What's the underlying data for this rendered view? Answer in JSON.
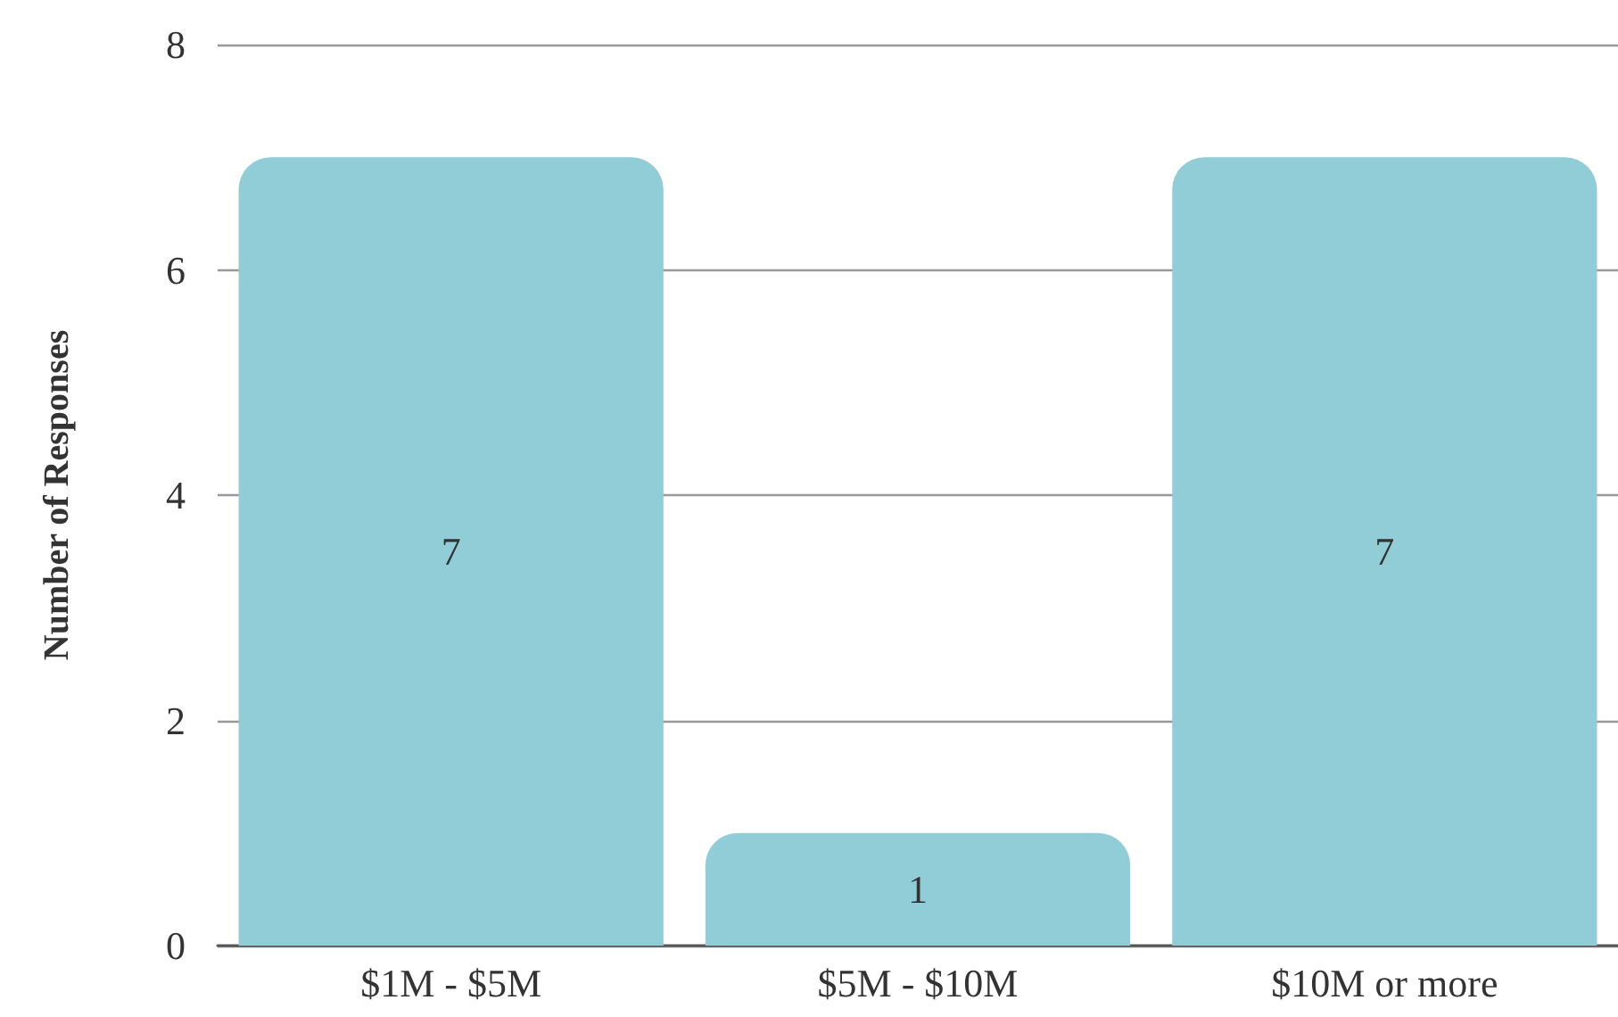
{
  "chart_data": {
    "type": "bar",
    "ylabel": "Number of Responses",
    "categories": [
      "$1M - $5M",
      "$5M - $10M",
      "$10M or more"
    ],
    "values": [
      7,
      1,
      7
    ],
    "color": "#90cdd6",
    "ylim": [
      0,
      8
    ],
    "yticks": [
      0,
      2,
      4,
      6,
      8
    ],
    "grid": "y",
    "data_labels": true
  }
}
